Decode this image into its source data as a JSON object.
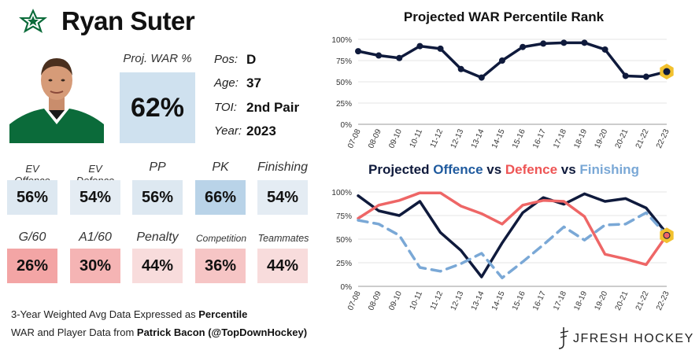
{
  "player": {
    "name": "Ryan Suter",
    "proj_war_label": "Proj. WAR %",
    "proj_war_value": "62%"
  },
  "info": [
    {
      "label": "Pos:",
      "value": "D"
    },
    {
      "label": "Age:",
      "value": "37"
    },
    {
      "label": "TOI:",
      "value": "2nd Pair"
    },
    {
      "label": "Year:",
      "value": "2023"
    }
  ],
  "stats_row1": [
    {
      "label": "EV Offence",
      "value": "56%",
      "color": "#dde8f1"
    },
    {
      "label": "EV Defence",
      "value": "54%",
      "color": "#e4ecf3"
    },
    {
      "label": "PP",
      "value": "56%",
      "color": "#dde8f1"
    },
    {
      "label": "PK",
      "value": "66%",
      "color": "#b9d3e8"
    },
    {
      "label": "Finishing",
      "value": "54%",
      "color": "#e4ecf3"
    }
  ],
  "stats_row2": [
    {
      "label": "G/60",
      "value": "26%",
      "color": "#f3a5a5"
    },
    {
      "label": "A1/60",
      "value": "30%",
      "color": "#f5b4b4"
    },
    {
      "label": "Penalty",
      "value": "44%",
      "color": "#f8dcdc"
    },
    {
      "label": "Competition",
      "value": "36%",
      "color": "#f6c5c5"
    },
    {
      "label": "Teammates",
      "value": "44%",
      "color": "#f8dcdc"
    }
  ],
  "footer": {
    "line1_prefix": "3-Year Weighted Avg Data Expressed as ",
    "line1_bold": "Percentile",
    "line2_prefix": "WAR and Player Data from ",
    "line2_bold": "Patrick Bacon (@TopDownHockey)"
  },
  "brand": "JFRESH HOCKEY",
  "colors": {
    "navy": "#0f1a3c",
    "red": "#ee6666",
    "blue": "#7aa8d6",
    "highlight": "#f2c12e"
  },
  "chart_data": [
    {
      "type": "line",
      "title": "Projected WAR Percentile Rank",
      "x": [
        "07-08",
        "08-09",
        "09-10",
        "10-11",
        "11-12",
        "12-13",
        "13-14",
        "14-15",
        "15-16",
        "16-17",
        "17-18",
        "18-19",
        "19-20",
        "20-21",
        "21-22",
        "22-23"
      ],
      "series": [
        {
          "name": "WAR",
          "values": [
            86,
            81,
            78,
            92,
            89,
            65,
            55,
            75,
            91,
            95,
            96,
            96,
            88,
            57,
            56,
            62
          ]
        }
      ],
      "ylim": [
        0,
        100
      ],
      "yticks": [
        "0%",
        "25%",
        "50%",
        "75%",
        "100%"
      ],
      "highlight": {
        "x": "22-23",
        "value": 62
      }
    },
    {
      "type": "line",
      "title_parts": [
        {
          "text": "Projected ",
          "color": "#0f1a3c"
        },
        {
          "text": "Offence",
          "color": "#1f5a9e"
        },
        {
          "text": " vs ",
          "color": "#0f1a3c"
        },
        {
          "text": "Defence",
          "color": "#ee5555"
        },
        {
          "text": " vs ",
          "color": "#0f1a3c"
        },
        {
          "text": "Finishing",
          "color": "#7aa8d6"
        }
      ],
      "x": [
        "07-08",
        "08-09",
        "09-10",
        "10-11",
        "11-12",
        "12-13",
        "13-14",
        "14-15",
        "15-16",
        "16-17",
        "17-18",
        "18-19",
        "19-20",
        "20-21",
        "21-22",
        "22-23"
      ],
      "series": [
        {
          "name": "Offence",
          "values": [
            96,
            80,
            75,
            90,
            57,
            38,
            10,
            46,
            78,
            94,
            87,
            98,
            90,
            93,
            83,
            56
          ]
        },
        {
          "name": "Defence",
          "values": [
            72,
            86,
            91,
            99,
            99,
            85,
            77,
            66,
            86,
            91,
            90,
            74,
            34,
            29,
            23,
            54
          ]
        },
        {
          "name": "Finishing",
          "values": [
            70,
            66,
            54,
            20,
            16,
            24,
            35,
            9,
            26,
            44,
            63,
            49,
            65,
            66,
            78,
            54
          ]
        }
      ],
      "ylim": [
        0,
        100
      ],
      "yticks": [
        "0%",
        "25%",
        "50%",
        "75%",
        "100%"
      ],
      "highlight": {
        "x": "22-23",
        "value": 54
      }
    }
  ]
}
